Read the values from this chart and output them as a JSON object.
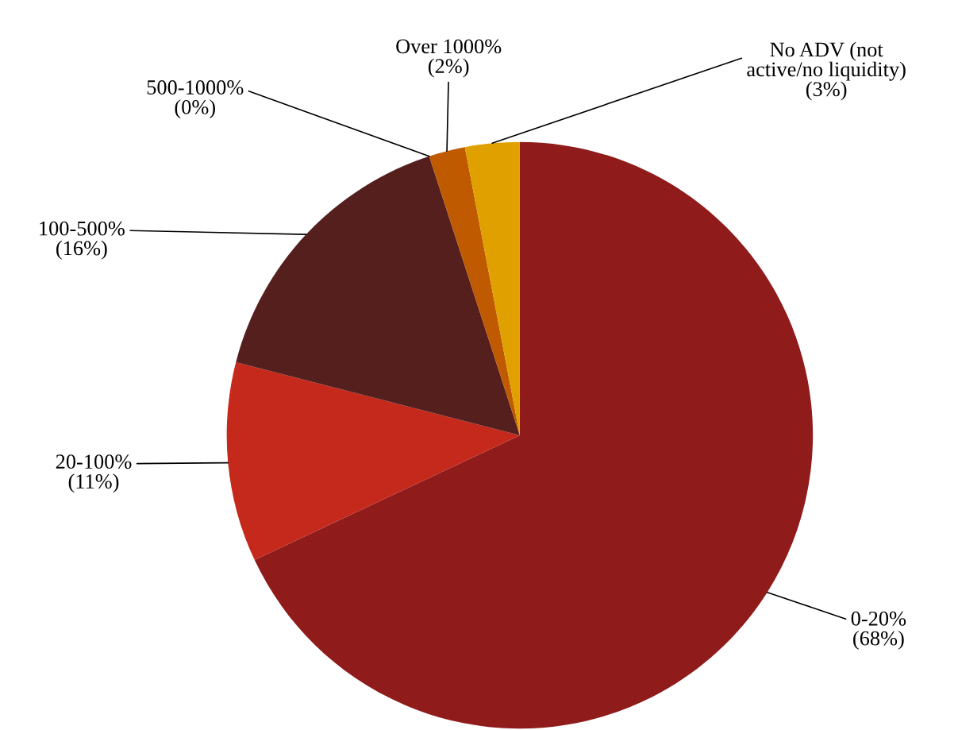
{
  "chart_data": {
    "type": "pie",
    "categories": [
      "0-20%",
      "20-100%",
      "100-500%",
      "500-1000%",
      "Over 1000%",
      "No ADV (not active/no liquidity)"
    ],
    "values": [
      68,
      11,
      16,
      0,
      2,
      3
    ],
    "value_labels": [
      "(68%)",
      "(11%)",
      "(16%)",
      "(0%)",
      "(2%)",
      "(3%)"
    ],
    "colors": [
      "#8f1b1b",
      "#c5291c",
      "#541f1d",
      "#b0404f",
      "#c05a00",
      "#e0a000"
    ],
    "legend": false
  }
}
